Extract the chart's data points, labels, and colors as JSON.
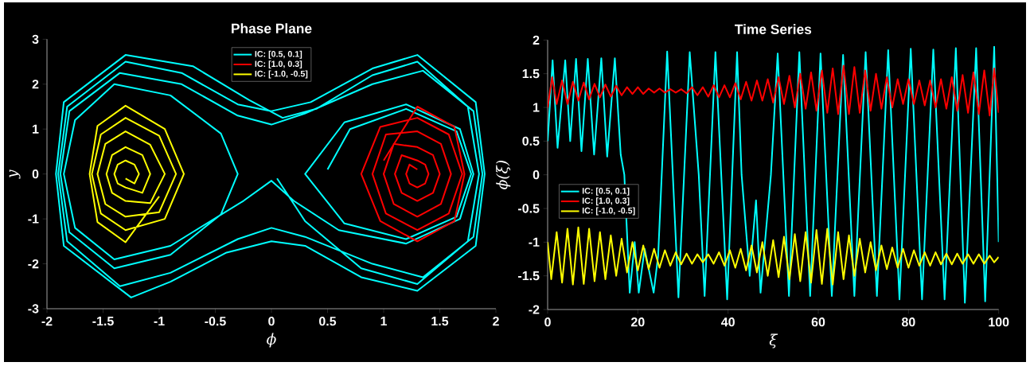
{
  "chart_data": [
    {
      "type": "line",
      "title": "Phase Plane",
      "xlabel": "ϕ",
      "ylabel": "y",
      "xlim": [
        -2,
        2
      ],
      "ylim": [
        -3,
        3
      ],
      "xticks": [
        -2,
        -1.5,
        -1,
        -0.5,
        0,
        0.5,
        1,
        1.5,
        2
      ],
      "yticks": [
        -3,
        -2,
        -1,
        0,
        1,
        2,
        3
      ],
      "legend": "top",
      "series": [
        {
          "name": "IC: [0.5, 0.1]",
          "color": "#00ffff",
          "x": [
            0.5,
            0.7,
            1.2,
            1.65,
            1.78,
            1.65,
            1.2,
            0.65,
            0.3,
            0.65,
            1.2,
            1.68,
            1.8,
            1.68,
            1.2,
            0.6,
            0.2,
            0,
            -0.25,
            -0.9,
            -1.4,
            -1.75,
            -1.85,
            -1.75,
            -1.4,
            -0.9,
            -0.45,
            -0.3,
            -0.45,
            -0.9,
            -1.4,
            -1.8,
            -1.88,
            -1.8,
            -1.35,
            -0.8,
            -0.3,
            0,
            0.3,
            0.9,
            1.35,
            1.8,
            1.88,
            1.8,
            1.35,
            0.9,
            0.3,
            0,
            -0.3,
            -0.9,
            -1.35,
            -1.82,
            -1.9,
            -1.82,
            -1.3,
            -0.8,
            -0.3,
            0,
            0.35,
            0.9,
            1.3,
            1.82,
            1.9,
            1.82,
            1.3,
            0.8,
            0.3,
            0,
            -0.4,
            -0.9,
            -1.25,
            -1.85,
            -1.92,
            -1.85,
            -1.3,
            -0.7,
            -0.2,
            0.1,
            0.4,
            0.9,
            1.3,
            1.75,
            1.85,
            1.75,
            1.3,
            0.8,
            0.3,
            0.05
          ],
          "values": [
            0.1,
            1.0,
            1.45,
            0.95,
            0,
            -0.95,
            -1.45,
            -1.1,
            0,
            1.15,
            1.55,
            1.0,
            0,
            -1.0,
            -1.55,
            -1.25,
            -0.6,
            -0.15,
            -0.6,
            -1.6,
            -1.9,
            -1.2,
            0,
            1.2,
            2.0,
            1.75,
            0.9,
            0,
            -0.9,
            -1.8,
            -2.1,
            -1.3,
            0,
            1.4,
            2.25,
            2.0,
            1.3,
            1.1,
            1.35,
            2.0,
            2.3,
            1.4,
            0,
            -1.4,
            -2.3,
            -2.0,
            -1.4,
            -1.2,
            -1.45,
            -2.2,
            -2.5,
            -1.5,
            0,
            1.5,
            2.5,
            2.25,
            1.55,
            1.4,
            1.6,
            2.35,
            2.65,
            1.6,
            0,
            -1.6,
            -2.6,
            -2.3,
            -1.6,
            -1.5,
            -1.75,
            -2.4,
            -2.75,
            -1.6,
            0,
            1.6,
            2.65,
            2.4,
            1.65,
            1.25,
            1.45,
            2.2,
            2.5,
            1.5,
            0,
            -1.5,
            -2.45,
            -2.1,
            -1.05,
            -0.1
          ]
        },
        {
          "name": "IC: [1.0, 0.3]",
          "color": "#ff0000",
          "x": [
            1.0,
            1.3,
            1.63,
            1.72,
            1.63,
            1.3,
            0.97,
            0.8,
            0.97,
            1.3,
            1.58,
            1.7,
            1.58,
            1.3,
            1.02,
            0.9,
            1.02,
            1.3,
            1.51,
            1.6,
            1.51,
            1.3,
            1.09,
            1.0,
            1.09,
            1.3,
            1.44,
            1.5,
            1.44,
            1.3,
            1.16,
            1.1,
            1.16,
            1.3,
            1.37,
            1.4,
            1.37,
            1.3,
            1.23,
            1.2,
            1.23,
            1.3
          ],
          "values": [
            0.3,
            1.5,
            1.05,
            0,
            -1.05,
            -1.5,
            -1.05,
            0,
            1.05,
            1.25,
            0.88,
            0,
            -0.88,
            -1.25,
            -0.88,
            0,
            0.88,
            0.95,
            0.67,
            0,
            -0.67,
            -0.95,
            -0.67,
            0,
            0.67,
            0.6,
            0.42,
            0,
            -0.42,
            -0.6,
            -0.42,
            0,
            0.42,
            0.3,
            0.21,
            0,
            -0.21,
            -0.3,
            -0.21,
            0,
            0.21,
            0.1
          ]
        },
        {
          "name": "IC: [-1.0, -0.5]",
          "color": "#ffff00",
          "x": [
            -1.0,
            -1.3,
            -1.55,
            -1.62,
            -1.55,
            -1.3,
            -0.95,
            -0.78,
            -0.95,
            -1.3,
            -1.52,
            -1.6,
            -1.52,
            -1.3,
            -1.0,
            -0.85,
            -1.0,
            -1.3,
            -1.48,
            -1.55,
            -1.48,
            -1.3,
            -1.08,
            -0.95,
            -1.08,
            -1.3,
            -1.42,
            -1.47,
            -1.42,
            -1.3,
            -1.15,
            -1.08,
            -1.15,
            -1.3,
            -1.37,
            -1.4,
            -1.37,
            -1.3,
            -1.22,
            -1.18,
            -1.22,
            -1.3
          ],
          "values": [
            -0.5,
            -1.52,
            -1.07,
            0,
            1.07,
            1.52,
            1.0,
            0,
            -1.0,
            -1.25,
            -0.88,
            0,
            0.88,
            1.25,
            0.85,
            0,
            -0.85,
            -0.95,
            -0.67,
            0,
            0.67,
            0.95,
            0.65,
            0,
            -0.65,
            -0.6,
            -0.42,
            0,
            0.42,
            0.6,
            0.42,
            0,
            -0.42,
            -0.3,
            -0.21,
            0,
            0.21,
            0.3,
            0.21,
            0,
            -0.21,
            -0.1
          ]
        }
      ]
    },
    {
      "type": "line",
      "title": "Time Series",
      "xlabel": "ξ",
      "ylabel": "ϕ(ξ)",
      "xlim": [
        0,
        100
      ],
      "ylim": [
        -2,
        2
      ],
      "xticks": [
        0,
        20,
        40,
        60,
        80,
        100
      ],
      "yticks": [
        -2,
        -1.5,
        -1,
        -0.5,
        0,
        0.5,
        1,
        1.5,
        2
      ],
      "legend": "left",
      "series": [
        {
          "name": "IC: [0.5, 0.1]",
          "color": "#00ffff",
          "x": [
            0,
            1.1,
            2.2,
            3.9,
            5.0,
            6.3,
            7.5,
            8.9,
            10.3,
            11.9,
            13.2,
            14.9,
            16.2,
            17,
            18.2,
            19.3,
            20.2,
            21.5,
            23.5,
            24.5,
            26.5,
            29,
            31.5,
            33.5,
            34.8,
            37.2,
            39.8,
            42,
            43,
            44.8,
            46.2,
            47.2,
            49.5,
            51,
            53.5,
            55.8,
            58.2,
            60.5,
            63,
            65.5,
            68,
            70.5,
            73,
            75.5,
            78,
            80.5,
            83,
            85.5,
            88,
            90.5,
            92.5,
            95,
            97,
            99,
            100
          ],
          "values": [
            0.5,
            1.7,
            0.4,
            1.7,
            0.5,
            1.72,
            0.35,
            1.72,
            0.3,
            1.73,
            0.27,
            1.73,
            0.3,
            0,
            -1.75,
            -1.0,
            -1.75,
            -1.1,
            -1.75,
            -1.2,
            1.83,
            -1.82,
            1.82,
            0,
            -1.8,
            1.82,
            -1.85,
            1.82,
            0,
            -1.5,
            -0.38,
            -1.75,
            0,
            1.8,
            -1.8,
            1.82,
            -1.8,
            1.8,
            -1.8,
            1.78,
            -1.8,
            1.82,
            -1.8,
            1.85,
            -1.85,
            1.87,
            -1.85,
            1.86,
            -1.85,
            1.88,
            -1.9,
            1.88,
            -1.88,
            1.9,
            -1.0
          ]
        },
        {
          "name": "IC: [1.0, 0.3]",
          "color": "#ff0000",
          "x": [
            0,
            1,
            2,
            3.2,
            4.4,
            5.6,
            6.8,
            8,
            9.2,
            10.4,
            11.6,
            12.8,
            14,
            15.2,
            16.4,
            17.6,
            18.8,
            20,
            21.2,
            22.4,
            23.6,
            24.8,
            26,
            27.2,
            28.4,
            29.6,
            30.8,
            32,
            33.2,
            34.4,
            35.6,
            36.8,
            38,
            39.2,
            40.4,
            41.6,
            42.8,
            44,
            45.2,
            46.4,
            47.6,
            48.8,
            50,
            51.2,
            52.4,
            53.6,
            54.8,
            56,
            57.2,
            58.4,
            59.6,
            60.8,
            62,
            63.2,
            64.4,
            65.6,
            66.8,
            68,
            69.2,
            70.4,
            71.6,
            72.8,
            74,
            75.2,
            76.4,
            77.6,
            78.8,
            80,
            81.2,
            82.4,
            83.6,
            84.8,
            86,
            87.2,
            88.4,
            89.6,
            90.8,
            92,
            93.2,
            94.4,
            95.6,
            96.8,
            98,
            99,
            100
          ],
          "values": [
            1.0,
            1.45,
            1.05,
            1.4,
            1.05,
            1.38,
            1.1,
            1.37,
            1.12,
            1.35,
            1.15,
            1.34,
            1.16,
            1.32,
            1.18,
            1.3,
            1.2,
            1.3,
            1.2,
            1.28,
            1.22,
            1.28,
            1.22,
            1.27,
            1.22,
            1.27,
            1.21,
            1.3,
            1.18,
            1.3,
            1.16,
            1.33,
            1.15,
            1.33,
            1.15,
            1.36,
            1.12,
            1.38,
            1.1,
            1.4,
            1.1,
            1.42,
            1.07,
            1.45,
            1.05,
            1.47,
            1.0,
            1.5,
            0.98,
            1.52,
            0.95,
            1.55,
            0.92,
            1.58,
            0.9,
            1.62,
            0.9,
            1.6,
            0.92,
            1.55,
            0.95,
            1.5,
            0.98,
            1.45,
            1.0,
            1.42,
            1.05,
            1.42,
            1.05,
            1.4,
            1.03,
            1.4,
            1.0,
            1.42,
            0.98,
            1.45,
            0.95,
            1.48,
            0.92,
            1.52,
            0.9,
            1.55,
            0.88,
            1.58,
            0.92
          ]
        },
        {
          "name": "IC: [-1.0, -0.5]",
          "color": "#ffff00",
          "x": [
            0,
            0.8,
            2,
            3.2,
            4.4,
            5.6,
            6.8,
            8,
            9.2,
            10.4,
            11.6,
            12.8,
            14,
            15.2,
            16.4,
            17.6,
            18.8,
            20,
            21.2,
            22.4,
            23.6,
            24.8,
            26,
            27.2,
            28.4,
            29.6,
            30.8,
            32,
            33.2,
            34.4,
            35.6,
            36.8,
            38,
            39.2,
            40.4,
            41.6,
            42.8,
            44,
            45.2,
            46.4,
            47.6,
            48.8,
            50,
            51.2,
            52.4,
            53.6,
            54.8,
            56,
            57.2,
            58.4,
            59.6,
            60.8,
            62,
            63.2,
            64.4,
            65.6,
            66.8,
            68,
            69.2,
            70.4,
            71.6,
            72.8,
            74,
            75.2,
            76.4,
            77.6,
            78.8,
            80,
            81.2,
            82.4,
            83.6,
            84.8,
            86,
            87.2,
            88.4,
            89.6,
            90.8,
            92,
            93.2,
            94.4,
            95.6,
            96.8,
            98,
            99,
            100
          ],
          "values": [
            -1.0,
            -1.55,
            -0.85,
            -1.6,
            -0.8,
            -1.63,
            -0.78,
            -1.62,
            -0.8,
            -1.58,
            -0.85,
            -1.55,
            -0.9,
            -1.5,
            -0.95,
            -1.45,
            -1.0,
            -1.42,
            -1.05,
            -1.4,
            -1.1,
            -1.38,
            -1.12,
            -1.35,
            -1.15,
            -1.33,
            -1.17,
            -1.32,
            -1.18,
            -1.3,
            -1.18,
            -1.32,
            -1.15,
            -1.35,
            -1.12,
            -1.38,
            -1.1,
            -1.42,
            -1.05,
            -1.45,
            -1.0,
            -1.5,
            -0.97,
            -1.52,
            -0.92,
            -1.55,
            -0.88,
            -1.58,
            -0.85,
            -1.6,
            -0.82,
            -1.62,
            -0.8,
            -1.63,
            -0.85,
            -1.55,
            -0.9,
            -1.5,
            -0.95,
            -1.45,
            -1.0,
            -1.42,
            -1.05,
            -1.4,
            -1.08,
            -1.38,
            -1.1,
            -1.38,
            -1.12,
            -1.35,
            -1.15,
            -1.35,
            -1.15,
            -1.33,
            -1.17,
            -1.33,
            -1.17,
            -1.32,
            -1.18,
            -1.32,
            -1.18,
            -1.32,
            -1.2,
            -1.3,
            -1.22
          ]
        }
      ]
    }
  ]
}
